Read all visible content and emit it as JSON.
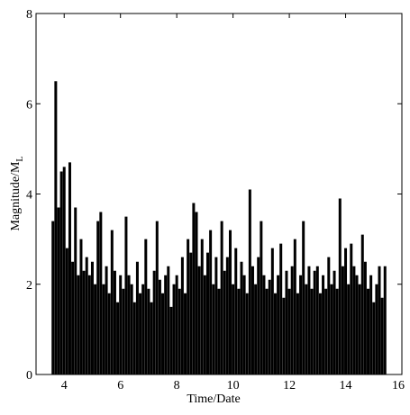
{
  "chart_data": {
    "type": "stem",
    "xlabel": "Time/Date",
    "ylabel": "Magnitude/M",
    "ylabel_sub": "L",
    "xlim": [
      3,
      16
    ],
    "xticks": [
      4,
      6,
      8,
      10,
      12,
      14,
      16
    ],
    "ylim": [
      0,
      8
    ],
    "yticks": [
      0,
      2,
      4,
      6,
      8
    ],
    "color": "#000000",
    "x": [
      3.6,
      3.7,
      3.8,
      3.9,
      4.0,
      4.1,
      4.2,
      4.3,
      4.4,
      4.5,
      4.6,
      4.7,
      4.8,
      4.9,
      5.0,
      5.1,
      5.2,
      5.3,
      5.4,
      5.5,
      5.6,
      5.7,
      5.8,
      5.9,
      6.0,
      6.1,
      6.2,
      6.3,
      6.4,
      6.5,
      6.6,
      6.7,
      6.8,
      6.9,
      7.0,
      7.1,
      7.2,
      7.3,
      7.4,
      7.5,
      7.6,
      7.7,
      7.8,
      7.9,
      8.0,
      8.1,
      8.2,
      8.3,
      8.4,
      8.5,
      8.6,
      8.7,
      8.8,
      8.9,
      9.0,
      9.1,
      9.2,
      9.3,
      9.4,
      9.5,
      9.6,
      9.7,
      9.8,
      9.9,
      10.0,
      10.1,
      10.2,
      10.3,
      10.4,
      10.5,
      10.6,
      10.7,
      10.8,
      10.9,
      11.0,
      11.1,
      11.2,
      11.3,
      11.4,
      11.5,
      11.6,
      11.7,
      11.8,
      11.9,
      12.0,
      12.1,
      12.2,
      12.3,
      12.4,
      12.5,
      12.6,
      12.7,
      12.8,
      12.9,
      13.0,
      13.1,
      13.2,
      13.3,
      13.4,
      13.5,
      13.6,
      13.7,
      13.8,
      13.9,
      14.0,
      14.1,
      14.2,
      14.3,
      14.4,
      14.5,
      14.6,
      14.7,
      14.8,
      14.9,
      15.0,
      15.1,
      15.2,
      15.3,
      15.4
    ],
    "values": [
      3.4,
      6.5,
      3.7,
      4.5,
      4.6,
      2.8,
      4.7,
      2.5,
      3.7,
      2.2,
      3.0,
      2.3,
      2.6,
      2.2,
      2.5,
      2.0,
      3.4,
      3.6,
      2.0,
      2.4,
      1.8,
      3.2,
      2.3,
      1.6,
      2.2,
      1.9,
      3.5,
      2.2,
      2.0,
      1.6,
      2.5,
      1.8,
      2.0,
      3.0,
      1.9,
      1.6,
      2.3,
      3.4,
      2.1,
      1.8,
      2.2,
      2.4,
      1.5,
      2.0,
      2.2,
      1.9,
      2.6,
      1.8,
      3.0,
      2.7,
      3.8,
      3.6,
      2.4,
      3.0,
      2.2,
      2.7,
      3.2,
      2.0,
      2.6,
      1.9,
      3.4,
      2.3,
      2.6,
      3.2,
      2.0,
      2.8,
      1.9,
      2.5,
      2.2,
      1.8,
      4.1,
      2.4,
      2.0,
      2.6,
      3.4,
      2.2,
      1.9,
      2.1,
      2.8,
      1.8,
      2.2,
      2.9,
      1.7,
      2.3,
      1.9,
      2.4,
      3.0,
      1.8,
      2.2,
      3.4,
      2.0,
      2.4,
      1.9,
      2.3,
      2.4,
      1.8,
      2.2,
      1.9,
      2.6,
      2.0,
      2.3,
      1.9,
      3.9,
      2.4,
      2.8,
      2.0,
      2.9,
      2.4,
      2.2,
      2.0,
      3.1,
      2.5,
      1.9,
      2.2,
      1.6,
      2.0,
      2.4,
      1.7,
      2.4
    ]
  }
}
